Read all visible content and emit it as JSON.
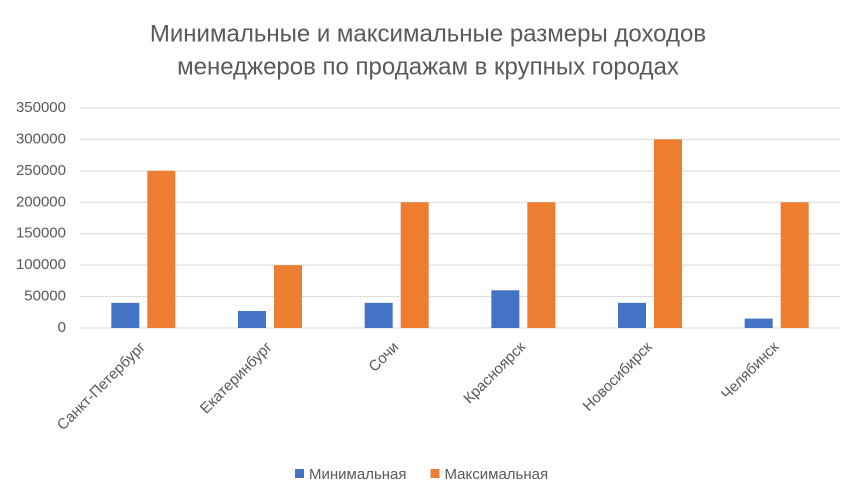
{
  "chart_data": {
    "type": "bar",
    "title": [
      "Минимальные и максимальные размеры доходов",
      "менеджеров по продажам в крупных городах"
    ],
    "categories": [
      "Санкт-Петербург",
      "Екатеринбург",
      "Сочи",
      "Красноярск",
      "Новосибирск",
      "Челябинск"
    ],
    "series": [
      {
        "name": "Минимальная",
        "color": "#4472c4",
        "values": [
          40000,
          27000,
          40000,
          60000,
          40000,
          15000
        ]
      },
      {
        "name": "Максимальная",
        "color": "#ed7d31",
        "values": [
          250000,
          100000,
          200000,
          200000,
          300000,
          200000
        ]
      }
    ],
    "ylim": [
      0,
      350000
    ],
    "yticks": [
      0,
      50000,
      100000,
      150000,
      200000,
      250000,
      300000,
      350000
    ],
    "grid": true,
    "legend": "bottom"
  }
}
